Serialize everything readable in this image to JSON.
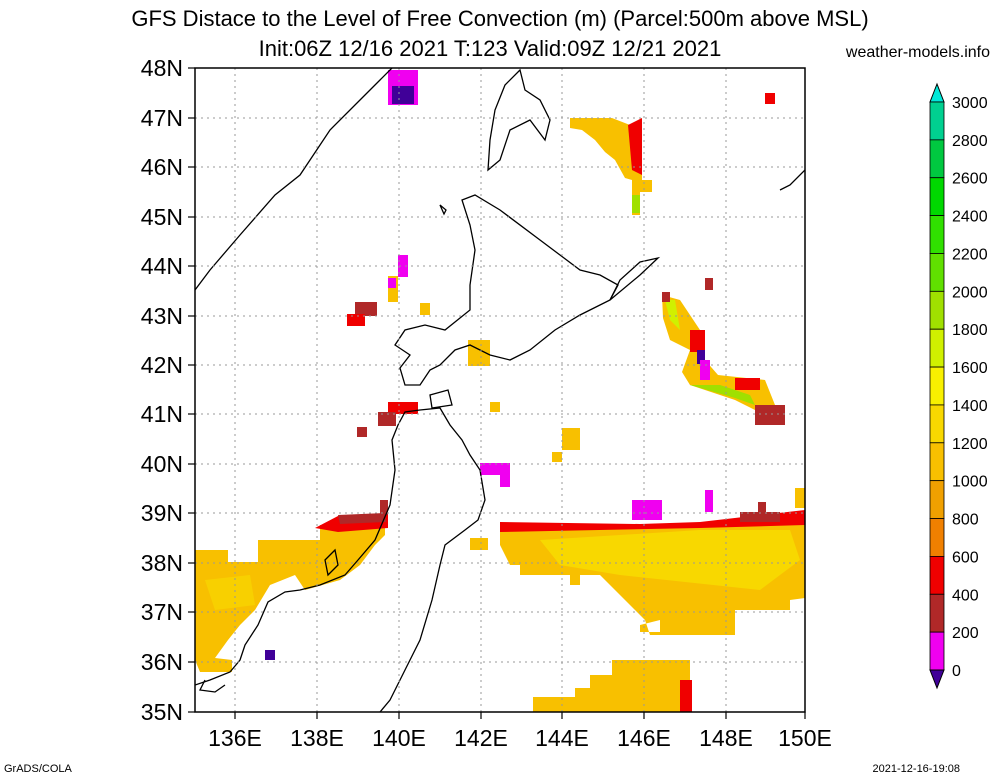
{
  "title_line1": "GFS Distace to the Level of Free Convection (m) (Parcel:500m above MSL)",
  "title_line2": "Init:06Z 12/16 2021 T:123 Valid:09Z 12/21 2021",
  "site": "weather-models.info",
  "footer_left": "GrADS/COLA",
  "footer_right": "2021-12-16-19:08",
  "lat_labels": [
    "48N",
    "47N",
    "46N",
    "45N",
    "44N",
    "43N",
    "42N",
    "41N",
    "40N",
    "39N",
    "38N",
    "37N",
    "36N",
    "35N"
  ],
  "lon_labels": [
    "136E",
    "138E",
    "140E",
    "142E",
    "144E",
    "146E",
    "148E",
    "150E"
  ],
  "colorbar": {
    "labels": [
      "3000",
      "2800",
      "2600",
      "2400",
      "2200",
      "2000",
      "1800",
      "1600",
      "1400",
      "1200",
      "1000",
      "800",
      "600",
      "400",
      "200",
      "0"
    ],
    "colors": [
      "#00e8d8",
      "#00d090",
      "#00c840",
      "#00d800",
      "#30e000",
      "#60e000",
      "#a0e000",
      "#d0f000",
      "#f8f000",
      "#f8d800",
      "#f8c000",
      "#f0a000",
      "#f08000",
      "#f00000",
      "#b02828",
      "#f000f0",
      "#400098"
    ]
  }
}
